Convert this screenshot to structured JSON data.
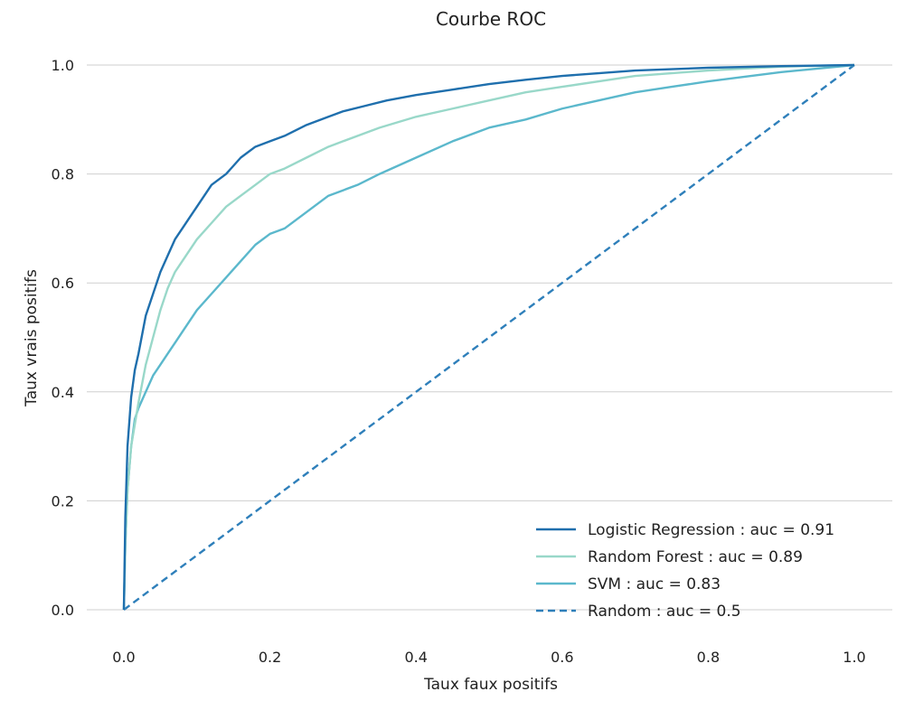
{
  "chart_data": {
    "type": "line",
    "title": "Courbe ROC",
    "xlabel": "Taux faux positifs",
    "ylabel": "Taux vrais positifs",
    "xlim": [
      0.0,
      1.0
    ],
    "ylim": [
      0.0,
      1.0
    ],
    "xticks": [
      "0.0",
      "0.2",
      "0.4",
      "0.6",
      "0.8",
      "1.0"
    ],
    "yticks": [
      "0.0",
      "0.2",
      "0.4",
      "0.6",
      "0.8",
      "1.0"
    ],
    "grid": "horizontal",
    "legend_position": "bottom-right",
    "series": [
      {
        "name": "Logistic Regression : auc = 0.91",
        "color": "#1f6fad",
        "dash": "solid",
        "x": [
          0.0,
          0.002,
          0.005,
          0.01,
          0.015,
          0.02,
          0.03,
          0.04,
          0.05,
          0.06,
          0.07,
          0.08,
          0.09,
          0.1,
          0.12,
          0.14,
          0.16,
          0.18,
          0.2,
          0.22,
          0.25,
          0.28,
          0.3,
          0.33,
          0.36,
          0.4,
          0.45,
          0.5,
          0.55,
          0.6,
          0.7,
          0.8,
          0.9,
          1.0
        ],
        "y": [
          0.0,
          0.17,
          0.3,
          0.39,
          0.44,
          0.47,
          0.54,
          0.58,
          0.62,
          0.65,
          0.68,
          0.7,
          0.72,
          0.74,
          0.78,
          0.8,
          0.83,
          0.85,
          0.86,
          0.87,
          0.89,
          0.905,
          0.915,
          0.925,
          0.935,
          0.945,
          0.955,
          0.965,
          0.973,
          0.98,
          0.99,
          0.995,
          0.998,
          1.0
        ]
      },
      {
        "name": "Random Forest : auc = 0.89",
        "color": "#99d8c9",
        "dash": "solid",
        "x": [
          0.0,
          0.002,
          0.005,
          0.01,
          0.02,
          0.03,
          0.04,
          0.05,
          0.06,
          0.07,
          0.08,
          0.1,
          0.12,
          0.14,
          0.16,
          0.18,
          0.2,
          0.22,
          0.25,
          0.28,
          0.3,
          0.35,
          0.4,
          0.45,
          0.5,
          0.55,
          0.6,
          0.7,
          0.8,
          0.9,
          1.0
        ],
        "y": [
          0.0,
          0.12,
          0.22,
          0.3,
          0.38,
          0.45,
          0.5,
          0.55,
          0.59,
          0.62,
          0.64,
          0.68,
          0.71,
          0.74,
          0.76,
          0.78,
          0.8,
          0.81,
          0.83,
          0.85,
          0.86,
          0.885,
          0.905,
          0.92,
          0.935,
          0.95,
          0.96,
          0.98,
          0.99,
          0.997,
          1.0
        ]
      },
      {
        "name": "SVM : auc = 0.83",
        "color": "#5bb8cc",
        "dash": "solid",
        "x": [
          0.0,
          0.002,
          0.005,
          0.01,
          0.015,
          0.02,
          0.03,
          0.04,
          0.05,
          0.06,
          0.07,
          0.08,
          0.1,
          0.12,
          0.14,
          0.16,
          0.18,
          0.2,
          0.22,
          0.25,
          0.28,
          0.3,
          0.32,
          0.35,
          0.4,
          0.45,
          0.5,
          0.55,
          0.6,
          0.65,
          0.7,
          0.75,
          0.8,
          0.9,
          1.0
        ],
        "y": [
          0.0,
          0.12,
          0.22,
          0.3,
          0.35,
          0.37,
          0.4,
          0.43,
          0.45,
          0.47,
          0.49,
          0.51,
          0.55,
          0.58,
          0.61,
          0.64,
          0.67,
          0.69,
          0.7,
          0.73,
          0.76,
          0.77,
          0.78,
          0.8,
          0.83,
          0.86,
          0.885,
          0.9,
          0.92,
          0.935,
          0.95,
          0.96,
          0.97,
          0.987,
          1.0
        ]
      },
      {
        "name": "Random : auc = 0.5",
        "color": "#2e7fba",
        "dash": "dashed",
        "x": [
          0.0,
          1.0
        ],
        "y": [
          0.0,
          1.0
        ]
      }
    ]
  }
}
